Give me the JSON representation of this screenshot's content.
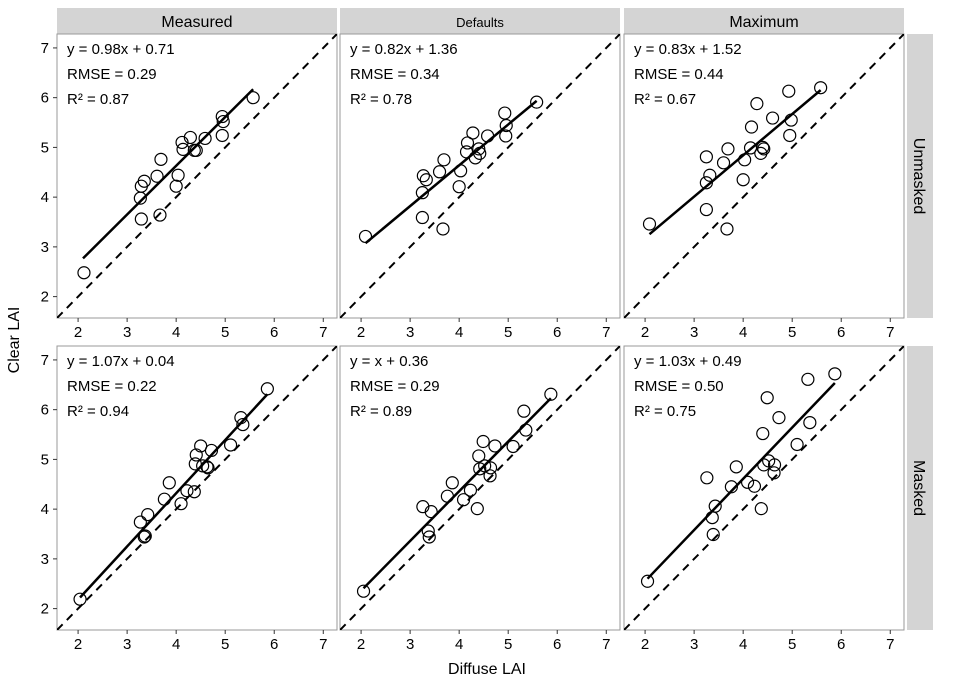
{
  "chart_data": {
    "type": "scatter",
    "xlabel": "Diffuse LAI",
    "ylabel": "Clear LAI",
    "xlim": [
      1.57,
      7.28
    ],
    "ylim": [
      1.57,
      7.28
    ],
    "xticks": [
      2,
      3,
      4,
      5,
      6,
      7
    ],
    "yticks": [
      2,
      3,
      4,
      5,
      6,
      7
    ],
    "grid": false,
    "reference_line": "1:1 dashed",
    "columns": [
      "Measured",
      "Defaults",
      "Maximum"
    ],
    "rows": [
      "Unmasked",
      "Masked"
    ],
    "panels": [
      {
        "row": 0,
        "col": 0,
        "fit": {
          "slope": 0.98,
          "intercept": 0.71,
          "x_range": [
            2.1,
            5.57
          ]
        },
        "annotation": [
          "y = 0.98x + 0.71",
          "RMSE = 0.29",
          "R² = 0.87"
        ],
        "points": [
          [
            2.12,
            2.48
          ],
          [
            3.27,
            3.98
          ],
          [
            3.29,
            3.56
          ],
          [
            3.29,
            4.22
          ],
          [
            3.35,
            4.32
          ],
          [
            3.61,
            4.42
          ],
          [
            3.69,
            4.76
          ],
          [
            3.67,
            3.64
          ],
          [
            4.0,
            4.22
          ],
          [
            4.04,
            4.44
          ],
          [
            4.12,
            5.1
          ],
          [
            4.14,
            4.96
          ],
          [
            4.29,
            5.2
          ],
          [
            4.37,
            4.94
          ],
          [
            4.41,
            4.94
          ],
          [
            4.59,
            5.18
          ],
          [
            4.94,
            5.62
          ],
          [
            4.96,
            5.52
          ],
          [
            4.94,
            5.24
          ],
          [
            5.57,
            6.0
          ]
        ]
      },
      {
        "row": 0,
        "col": 1,
        "fit": {
          "slope": 0.82,
          "intercept": 1.36,
          "x_range": [
            2.09,
            5.58
          ]
        },
        "annotation": [
          "y = 0.82x + 1.36",
          "RMSE = 0.34",
          "R² = 0.78"
        ],
        "points": [
          [
            2.09,
            3.21
          ],
          [
            3.25,
            3.59
          ],
          [
            3.67,
            3.36
          ],
          [
            3.25,
            4.09
          ],
          [
            3.27,
            4.43
          ],
          [
            3.33,
            4.35
          ],
          [
            3.6,
            4.51
          ],
          [
            3.69,
            4.75
          ],
          [
            4.0,
            4.21
          ],
          [
            4.03,
            4.53
          ],
          [
            4.15,
            4.91
          ],
          [
            4.17,
            5.09
          ],
          [
            4.28,
            5.29
          ],
          [
            4.33,
            4.79
          ],
          [
            4.4,
            4.97
          ],
          [
            4.42,
            4.88
          ],
          [
            4.58,
            5.23
          ],
          [
            4.93,
            5.69
          ],
          [
            4.96,
            5.44
          ],
          [
            4.95,
            5.23
          ],
          [
            5.58,
            5.91
          ]
        ]
      },
      {
        "row": 0,
        "col": 2,
        "fit": {
          "slope": 0.83,
          "intercept": 1.52,
          "x_range": [
            2.09,
            5.58
          ]
        },
        "annotation": [
          "y = 0.83x + 1.52",
          "RMSE = 0.44",
          "R² = 0.67"
        ],
        "points": [
          [
            2.09,
            3.46
          ],
          [
            3.25,
            3.75
          ],
          [
            3.67,
            3.36
          ],
          [
            3.25,
            4.29
          ],
          [
            3.32,
            4.44
          ],
          [
            3.25,
            4.81
          ],
          [
            3.6,
            4.69
          ],
          [
            3.69,
            4.97
          ],
          [
            4.0,
            4.35
          ],
          [
            4.03,
            4.75
          ],
          [
            4.15,
            4.99
          ],
          [
            4.17,
            5.41
          ],
          [
            4.28,
            5.88
          ],
          [
            4.36,
            4.88
          ],
          [
            4.4,
            5.0
          ],
          [
            4.42,
            4.97
          ],
          [
            4.6,
            5.59
          ],
          [
            4.93,
            6.13
          ],
          [
            4.98,
            5.55
          ],
          [
            4.95,
            5.24
          ],
          [
            5.58,
            6.2
          ]
        ]
      },
      {
        "row": 1,
        "col": 0,
        "fit": {
          "slope": 1.07,
          "intercept": 0.04,
          "x_range": [
            2.04,
            5.86
          ]
        },
        "annotation": [
          "y =  1.07x + 0.04",
          "RMSE = 0.22",
          "R² = 0.94"
        ],
        "points": [
          [
            2.04,
            2.19
          ],
          [
            3.27,
            3.74
          ],
          [
            3.42,
            3.89
          ],
          [
            3.35,
            3.44
          ],
          [
            3.37,
            3.46
          ],
          [
            3.76,
            4.2
          ],
          [
            3.86,
            4.53
          ],
          [
            4.1,
            4.11
          ],
          [
            4.22,
            4.37
          ],
          [
            4.37,
            4.35
          ],
          [
            4.41,
            5.09
          ],
          [
            4.5,
            5.27
          ],
          [
            4.39,
            4.91
          ],
          [
            4.54,
            4.87
          ],
          [
            4.65,
            4.83
          ],
          [
            4.63,
            4.85
          ],
          [
            4.72,
            5.18
          ],
          [
            5.11,
            5.29
          ],
          [
            5.32,
            5.84
          ],
          [
            5.36,
            5.7
          ],
          [
            5.86,
            6.42
          ]
        ]
      },
      {
        "row": 1,
        "col": 1,
        "fit": {
          "slope": 1.0,
          "intercept": 0.36,
          "x_range": [
            2.05,
            5.87
          ]
        },
        "annotation": [
          "y = x + 0.36",
          "RMSE = 0.29",
          "R² = 0.89"
        ],
        "points": [
          [
            2.05,
            2.35
          ],
          [
            3.26,
            4.05
          ],
          [
            3.43,
            3.95
          ],
          [
            3.37,
            3.56
          ],
          [
            3.39,
            3.44
          ],
          [
            3.76,
            4.26
          ],
          [
            3.86,
            4.53
          ],
          [
            4.09,
            4.19
          ],
          [
            4.23,
            4.38
          ],
          [
            4.37,
            4.01
          ],
          [
            4.4,
            5.07
          ],
          [
            4.49,
            5.36
          ],
          [
            4.42,
            4.81
          ],
          [
            4.52,
            4.87
          ],
          [
            4.64,
            4.83
          ],
          [
            4.63,
            4.67
          ],
          [
            4.73,
            5.27
          ],
          [
            5.1,
            5.26
          ],
          [
            5.32,
            5.97
          ],
          [
            5.36,
            5.59
          ],
          [
            5.87,
            6.31
          ]
        ]
      },
      {
        "row": 1,
        "col": 2,
        "fit": {
          "slope": 1.03,
          "intercept": 0.49,
          "x_range": [
            2.05,
            5.87
          ]
        },
        "annotation": [
          "y =  1.03x + 0.49",
          "RMSE = 0.50",
          "R² = 0.75"
        ],
        "points": [
          [
            2.05,
            2.55
          ],
          [
            3.26,
            4.63
          ],
          [
            3.43,
            4.06
          ],
          [
            3.37,
            3.83
          ],
          [
            3.39,
            3.49
          ],
          [
            3.76,
            4.45
          ],
          [
            3.86,
            4.85
          ],
          [
            4.09,
            4.54
          ],
          [
            4.23,
            4.46
          ],
          [
            4.37,
            4.01
          ],
          [
            4.4,
            5.52
          ],
          [
            4.49,
            6.24
          ],
          [
            4.42,
            4.89
          ],
          [
            4.52,
            4.97
          ],
          [
            4.64,
            4.89
          ],
          [
            4.63,
            4.73
          ],
          [
            4.73,
            5.84
          ],
          [
            5.1,
            5.3
          ],
          [
            5.32,
            6.61
          ],
          [
            5.36,
            5.74
          ],
          [
            5.87,
            6.72
          ]
        ]
      }
    ]
  }
}
